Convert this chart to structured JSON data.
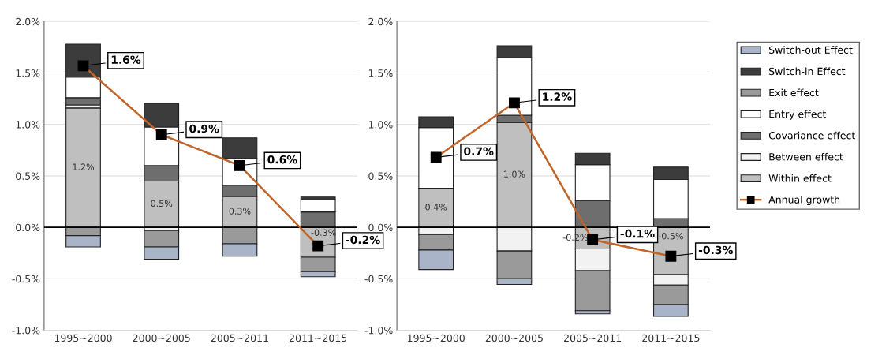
{
  "chart_data": [
    {
      "type": "bar",
      "stacked": true,
      "categories": [
        "1995~2000",
        "2000~2005",
        "2005~2011",
        "2011~2015"
      ],
      "ylim": [
        -1.0,
        2.0
      ],
      "yticks": [
        {
          "value": -1.0,
          "label": "-1.0%"
        },
        {
          "value": -0.5,
          "label": "-0.5%"
        },
        {
          "value": 0.0,
          "label": "0.0%"
        },
        {
          "value": 0.5,
          "label": "0.5%"
        },
        {
          "value": 1.0,
          "label": "1.0%"
        },
        {
          "value": 1.5,
          "label": "1.5%"
        },
        {
          "value": 2.0,
          "label": "2.0%"
        }
      ],
      "grid": "y",
      "legend": "right",
      "ref_lines": [
        {
          "axis": "y",
          "value": 0,
          "color": "#000000"
        }
      ],
      "series": [
        {
          "name": "Within effect",
          "color": "#bfbfbf",
          "values": [
            1.16,
            0.45,
            0.3,
            -0.29
          ],
          "value_labels": [
            "1.2%",
            "0.5%",
            "0.3%",
            "-0.3%"
          ]
        },
        {
          "name": "Between effect",
          "color": "#f2f2f2",
          "values": [
            0.03,
            -0.03,
            null,
            null
          ]
        },
        {
          "name": "Covariance effect",
          "color": "#6e6e6e",
          "values": [
            0.07,
            0.15,
            0.11,
            0.15
          ]
        },
        {
          "name": "Entry effect",
          "color": "#ffffff",
          "values": [
            0.2,
            0.375,
            0.26,
            0.12
          ]
        },
        {
          "name": "Exit effect",
          "color": "#9a9a9a",
          "values": [
            -0.08,
            -0.16,
            -0.16,
            -0.14
          ]
        },
        {
          "name": "Switch-in Effect",
          "color": "#3c3c3c",
          "values": [
            0.32,
            0.23,
            0.2,
            0.025
          ]
        },
        {
          "name": "Switch-out Effect",
          "color": "#a9b4c8",
          "values": [
            -0.11,
            -0.12,
            -0.12,
            -0.05
          ]
        },
        {
          "name": "Annual growth",
          "type": "line",
          "color": "#c0652a",
          "marker": "square",
          "values": [
            1.57,
            0.9,
            0.6,
            -0.18
          ],
          "value_labels": [
            "1.6%",
            "0.9%",
            "0.6%",
            "-0.2%"
          ]
        }
      ]
    },
    {
      "type": "bar",
      "stacked": true,
      "categories": [
        "1995~2000",
        "2000~2005",
        "2005~2011",
        "2011~2015"
      ],
      "ylim": [
        -1.0,
        2.0
      ],
      "yticks": [
        {
          "value": -1.0,
          "label": "-1.0%"
        },
        {
          "value": -0.5,
          "label": "-0.5%"
        },
        {
          "value": 0.0,
          "label": "0.0%"
        },
        {
          "value": 0.5,
          "label": "0.5%"
        },
        {
          "value": 1.0,
          "label": "1.0%"
        },
        {
          "value": 1.5,
          "label": "1.5%"
        },
        {
          "value": 2.0,
          "label": "2.0%"
        }
      ],
      "grid": "y",
      "legend": "right",
      "ref_lines": [
        {
          "axis": "y",
          "value": 0,
          "color": "#000000"
        }
      ],
      "series": [
        {
          "name": "Within effect",
          "color": "#bfbfbf",
          "values": [
            0.38,
            1.02,
            -0.21,
            -0.46
          ],
          "value_labels": [
            "0.4%",
            "1.0%",
            "-0.2%",
            "-0.5%"
          ]
        },
        {
          "name": "Between effect",
          "color": "#f2f2f2",
          "values": [
            -0.07,
            -0.23,
            -0.21,
            -0.1
          ]
        },
        {
          "name": "Covariance effect",
          "color": "#6e6e6e",
          "values": [
            null,
            0.07,
            0.26,
            0.085
          ]
        },
        {
          "name": "Entry effect",
          "color": "#ffffff",
          "values": [
            0.59,
            0.56,
            0.35,
            0.38
          ]
        },
        {
          "name": "Exit effect",
          "color": "#9a9a9a",
          "values": [
            -0.15,
            -0.27,
            -0.39,
            -0.19
          ]
        },
        {
          "name": "Switch-in Effect",
          "color": "#3c3c3c",
          "values": [
            0.105,
            0.115,
            0.11,
            0.12
          ]
        },
        {
          "name": "Switch-out Effect",
          "color": "#a9b4c8",
          "values": [
            -0.19,
            -0.055,
            -0.03,
            -0.115
          ]
        },
        {
          "name": "Annual growth",
          "type": "line",
          "color": "#c0652a",
          "marker": "square",
          "values": [
            0.68,
            1.21,
            -0.12,
            -0.28
          ],
          "value_labels": [
            "0.7%",
            "1.2%",
            "-0.1%",
            "-0.3%"
          ]
        }
      ]
    }
  ]
}
